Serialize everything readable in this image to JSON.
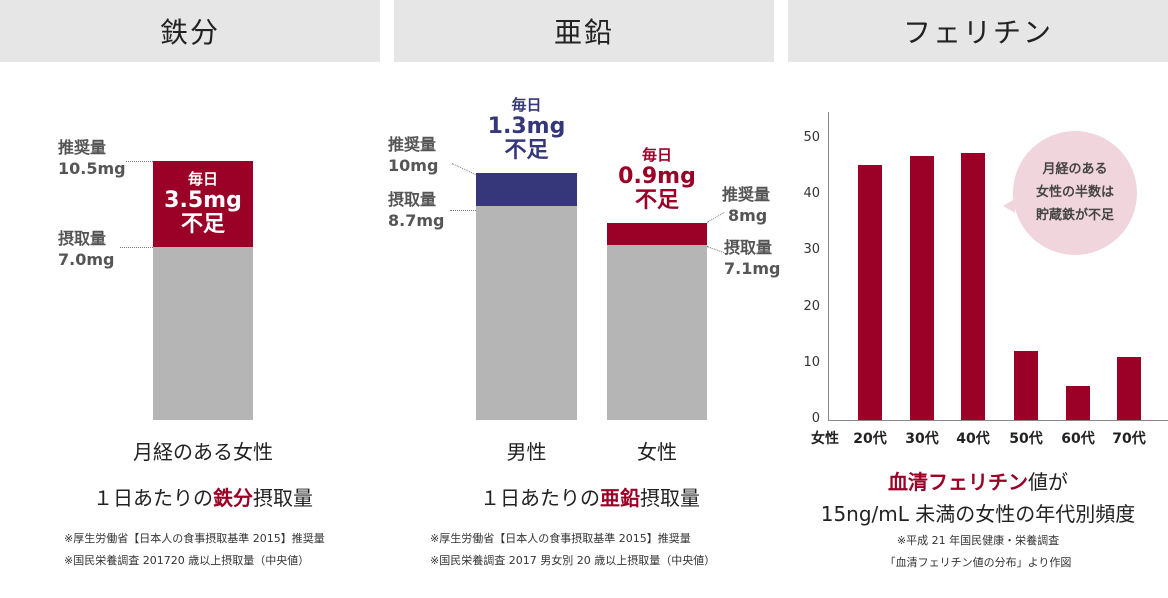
{
  "panels": [
    {
      "title": "鉄分",
      "recommended_label": "推奨量",
      "recommended_value": "10.5mg",
      "intake_label": "摂取量",
      "intake_value": "7.0mg",
      "deficit_line1": "毎日",
      "deficit_line2": "3.5mg",
      "deficit_line3": "不足",
      "group": "月経のある女性",
      "caption_pre": "１日あたりの",
      "caption_hl": "鉄分",
      "caption_post": "摂取量",
      "note1": "※厚生労働省【日本人の食事摂取基準 2015】推奨量",
      "note2": "※国民栄養調査 201720 歳以上摂取量（中央値）"
    },
    {
      "title": "亜鉛",
      "male": {
        "recommended_label": "推奨量",
        "recommended_value": "10mg",
        "intake_label": "摂取量",
        "intake_value": "8.7mg",
        "deficit_line1": "毎日",
        "deficit_line2": "1.3mg",
        "deficit_line3": "不足",
        "group": "男性"
      },
      "female": {
        "recommended_label": "推奨量",
        "recommended_value": "8mg",
        "intake_label": "摂取量",
        "intake_value": "7.1mg",
        "deficit_line1": "毎日",
        "deficit_line2": "0.9mg",
        "deficit_line3": "不足",
        "group": "女性"
      },
      "caption_pre": "１日あたりの",
      "caption_hl": "亜鉛",
      "caption_post": "摂取量",
      "note1": "※厚生労働省【日本人の食事摂取基準 2015】推奨量",
      "note2": "※国民栄養調査 2017 男女別 20 歳以上摂取量（中央値）"
    },
    {
      "title": "フェリチン",
      "bubble1": "月経のある",
      "bubble2": "女性の半数は",
      "bubble3": "貯蔵鉄が不足",
      "caption_hl": "血清フェリチン",
      "caption_post": "値が",
      "caption2": "15ng/mL 未満の女性の年代別頻度",
      "note1": "※平成 21 年国民健康・栄養調査",
      "note2": "「血清フェリチン値の分布」より作図"
    }
  ],
  "chart_data": [
    {
      "type": "bar",
      "title": "鉄分",
      "categories": [
        "月経のある女性"
      ],
      "series": [
        {
          "name": "摂取量",
          "values": [
            7.0
          ]
        },
        {
          "name": "不足",
          "values": [
            3.5
          ]
        }
      ],
      "recommended": [
        10.5
      ]
    },
    {
      "type": "bar",
      "title": "亜鉛",
      "categories": [
        "男性",
        "女性"
      ],
      "series": [
        {
          "name": "摂取量",
          "values": [
            8.7,
            7.1
          ]
        },
        {
          "name": "不足",
          "values": [
            1.3,
            0.9
          ]
        }
      ],
      "recommended": [
        10,
        8
      ]
    },
    {
      "type": "bar",
      "title": "フェリチン",
      "xlabel": "女性",
      "categories": [
        "20代",
        "30代",
        "40代",
        "50代",
        "60代",
        "70代"
      ],
      "values": [
        45.3,
        47.0,
        47.5,
        12.2,
        6.1,
        11.2
      ],
      "ylim": [
        0,
        50
      ],
      "yticks": [
        0,
        10,
        20,
        30,
        40,
        50
      ]
    }
  ],
  "colors": {
    "red": "#9b0026",
    "navy": "#35377a",
    "gray": "#b5b5b5",
    "header": "#e6e6e6",
    "bubble": "#f0d5dc"
  }
}
